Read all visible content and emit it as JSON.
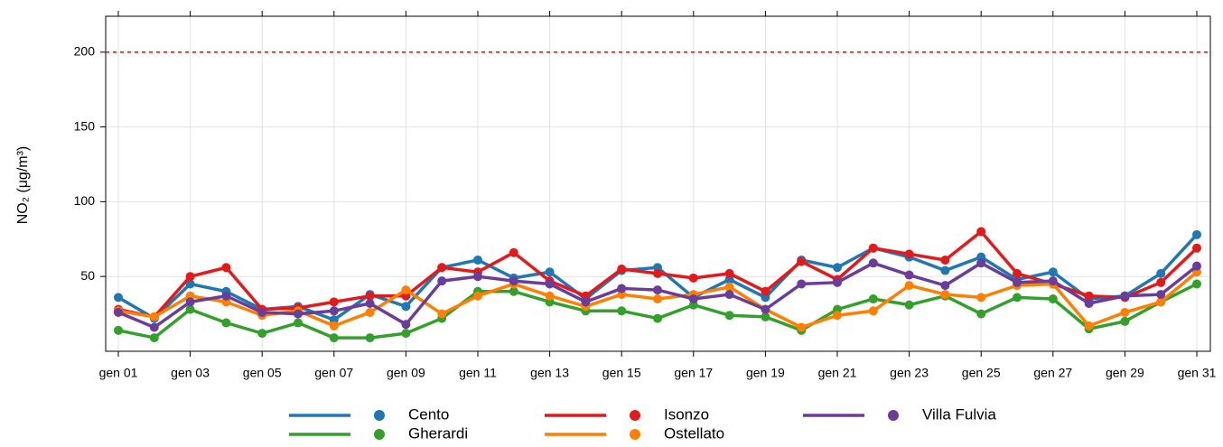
{
  "chart_data": {
    "type": "line",
    "ylabel": "NO₂ (μg/m³)",
    "categories": [
      "gen 01",
      null,
      "gen 03",
      null,
      "gen 05",
      null,
      "gen 07",
      null,
      "gen 09",
      null,
      "gen 11",
      null,
      "gen 13",
      null,
      "gen 15",
      null,
      "gen 17",
      null,
      "gen 19",
      null,
      "gen 21",
      null,
      "gen 23",
      null,
      "gen 25",
      null,
      "gen 27",
      null,
      "gen 29",
      null,
      "gen 31"
    ],
    "series": [
      {
        "name": "Cento",
        "color": "#1f78b4",
        "values": [
          36,
          22,
          45,
          40,
          28,
          30,
          21,
          38,
          30,
          56,
          61,
          49,
          53,
          35,
          54,
          56,
          36,
          48,
          36,
          61,
          56,
          69,
          63,
          54,
          63,
          48,
          53,
          35,
          37,
          52,
          78
        ]
      },
      {
        "name": "Gherardi",
        "color": "#33a02c",
        "values": [
          14,
          9,
          28,
          19,
          12,
          19,
          9,
          9,
          12,
          22,
          40,
          40,
          33,
          27,
          27,
          22,
          31,
          24,
          23,
          14,
          28,
          35,
          31,
          37,
          25,
          36,
          35,
          15,
          20,
          33,
          45
        ]
      },
      {
        "name": "Isonzo",
        "color": "#e31a1c",
        "values": [
          28,
          23,
          50,
          56,
          28,
          29,
          33,
          37,
          37,
          56,
          53,
          66,
          47,
          37,
          55,
          52,
          49,
          52,
          40,
          60,
          48,
          69,
          65,
          61,
          80,
          52,
          45,
          37,
          36,
          46,
          69
        ]
      },
      {
        "name": "Ostellato",
        "color": "#ff7f00",
        "values": [
          27,
          23,
          37,
          33,
          24,
          27,
          17,
          26,
          41,
          25,
          37,
          45,
          37,
          30,
          38,
          35,
          38,
          43,
          28,
          16,
          24,
          27,
          44,
          38,
          36,
          44,
          45,
          17,
          26,
          33,
          53
        ]
      },
      {
        "name": "Villa Fulvia",
        "color": "#6a3d9a",
        "values": [
          26,
          16,
          33,
          37,
          26,
          25,
          27,
          32,
          18,
          47,
          50,
          47,
          45,
          33,
          42,
          41,
          35,
          38,
          28,
          45,
          46,
          59,
          51,
          44,
          59,
          46,
          47,
          32,
          37,
          38,
          57
        ]
      }
    ],
    "ylim": [
      0,
      224
    ],
    "yticks": [
      50,
      100,
      150,
      200
    ],
    "grid": true,
    "hline": {
      "value": 200,
      "color": "#ff0000",
      "style": "dashed"
    },
    "legend": "bottom"
  }
}
